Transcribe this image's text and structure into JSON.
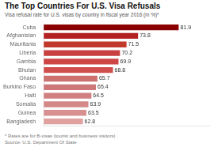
{
  "chart_data": {
    "type": "bar",
    "orientation": "horizontal",
    "title": "The Top Countries For U.S. Visa Refusals",
    "subtitle": "Visa refusal rate for U.S. visas by country in fiscal year 2016 (in %)*",
    "annotations": [
      "* Rates are for B-visas (tourist and business visitors)\nSource: U.S. Department Of State"
    ],
    "categories": [
      "Cuba",
      "Afghanistan",
      "Mauritania",
      "Liberia",
      "Gambia",
      "Bhutan",
      "Ghana",
      "Burkino Faso",
      "Haiti",
      "Somalia",
      "Guinea",
      "Bangladesh"
    ],
    "values": [
      81.9,
      73.8,
      71.5,
      70.2,
      69.9,
      68.8,
      65.7,
      65.4,
      64.5,
      63.9,
      63.5,
      62.8
    ],
    "colors": [
      "#8b0000",
      "#b22222",
      "#c0392b",
      "#c94040",
      "#cd4545",
      "#d14e4e",
      "#cc7070",
      "#cc7878",
      "#d08080",
      "#d48888",
      "#d89090",
      "#e0a0a0"
    ],
    "xlim": [
      55,
      88
    ],
    "grid": false,
    "legend": false,
    "data_labels": true,
    "tick_labels": "y"
  }
}
